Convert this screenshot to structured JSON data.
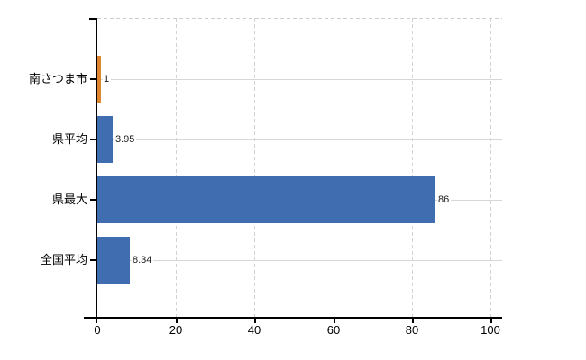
{
  "chart": {
    "background": "#ffffff",
    "axis_color": "#000000",
    "grid_color": "#d7d7d7",
    "text_color": "#000000",
    "accent_blue": "#3f6db0",
    "accent_orange": "#e0862e"
  },
  "chart_data": {
    "type": "bar",
    "orientation": "horizontal",
    "title": "",
    "xlabel": "",
    "ylabel": "",
    "categories": [
      "南さつま市",
      "県平均",
      "県最大",
      "全国平均"
    ],
    "values": [
      1,
      3.95,
      86,
      8.34
    ],
    "value_labels": [
      "1",
      "3.95",
      "86",
      "8.34"
    ],
    "bar_colors": [
      "#e0862e",
      "#3f6db0",
      "#3f6db0",
      "#3f6db0"
    ],
    "xlim": [
      0,
      100
    ],
    "x_ticks": [
      0,
      20,
      40,
      60,
      80,
      100
    ],
    "x_tick_labels": [
      "0",
      "20",
      "40",
      "60",
      "80",
      "100"
    ],
    "grid": "dashed vertical gridlines at x ticks, solid horizontal gridlines at category centers, dashed top border",
    "legend": "none"
  }
}
